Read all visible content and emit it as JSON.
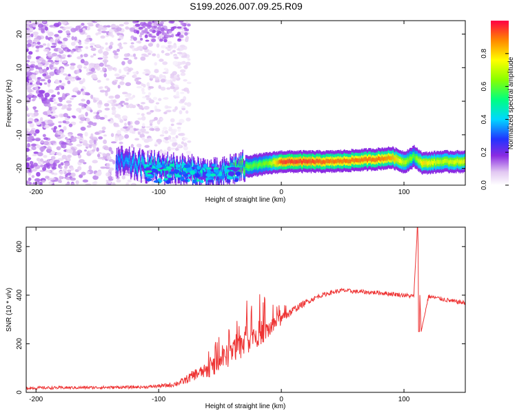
{
  "title": "S199.2026.007.09.25.R09",
  "colors": {
    "signal": "#ee3333",
    "frame": "#000000",
    "background": "#ffffff"
  },
  "chart_data": [
    {
      "type": "heatmap",
      "xlabel": "Height of straight line (km)",
      "ylabel": "Frequency (Hz)",
      "xlim": [
        -208,
        150
      ],
      "ylim": [
        -25,
        24
      ],
      "xticks": [
        "-200",
        "-100",
        "0",
        "100"
      ],
      "yticks": [
        "-20",
        "-10",
        "0",
        "10",
        "20"
      ],
      "colorbar": {
        "label": "Normalized spectral amplitude",
        "range": [
          0,
          1
        ],
        "ticks": [
          "0.0",
          "0.2",
          "0.4",
          "0.6",
          "0.8"
        ]
      },
      "ridge_track": {
        "x": [
          -135,
          -110,
          -90,
          -70,
          -50,
          -40,
          -30,
          -20,
          -10,
          0,
          20,
          40,
          60,
          80,
          90,
          100,
          108,
          115,
          130,
          150
        ],
        "frequency": [
          -18,
          -19.5,
          -20,
          -21,
          -22,
          -20,
          -19.5,
          -19,
          -18.5,
          -18,
          -18,
          -18,
          -17.6,
          -17.2,
          -16.8,
          -18.2,
          -16.5,
          -18.5,
          -18,
          -18
        ],
        "amplitude": [
          0.35,
          0.45,
          0.5,
          0.45,
          0.4,
          0.55,
          0.6,
          0.6,
          0.65,
          0.95,
          0.95,
          0.9,
          0.9,
          0.9,
          0.85,
          0.7,
          0.6,
          0.8,
          0.7,
          0.75
        ]
      },
      "noise_region": {
        "x_range": [
          -208,
          -75
        ],
        "amplitude_range": [
          0.0,
          0.15
        ]
      }
    },
    {
      "type": "line",
      "xlabel": "Height of straight line (km)",
      "ylabel": "SNR (10 * v/v)",
      "xlim": [
        -208,
        150
      ],
      "ylim": [
        0,
        680
      ],
      "xticks": [
        "-200",
        "-100",
        "0",
        "100"
      ],
      "yticks": [
        "0",
        "200",
        "400",
        "600"
      ],
      "series": [
        {
          "x": [
            -208,
            -150,
            -110,
            -90,
            -80,
            -70,
            -60,
            -50,
            -40,
            -30,
            -20,
            -10,
            0,
            10,
            20,
            30,
            40,
            50,
            60,
            70,
            80,
            90,
            100,
            108,
            111,
            114,
            120,
            130,
            140,
            150
          ],
          "y": [
            18,
            20,
            22,
            30,
            45,
            75,
            90,
            120,
            170,
            210,
            240,
            260,
            300,
            340,
            370,
            395,
            410,
            420,
            415,
            412,
            410,
            405,
            400,
            395,
            680,
            250,
            395,
            385,
            375,
            368
          ],
          "noise_amplitude": [
            10,
            10,
            10,
            15,
            25,
            40,
            50,
            70,
            90,
            100,
            90,
            70,
            40,
            25,
            20,
            15,
            15,
            15,
            15,
            15,
            15,
            15,
            15,
            15,
            0,
            0,
            15,
            15,
            15,
            15
          ]
        }
      ]
    }
  ]
}
